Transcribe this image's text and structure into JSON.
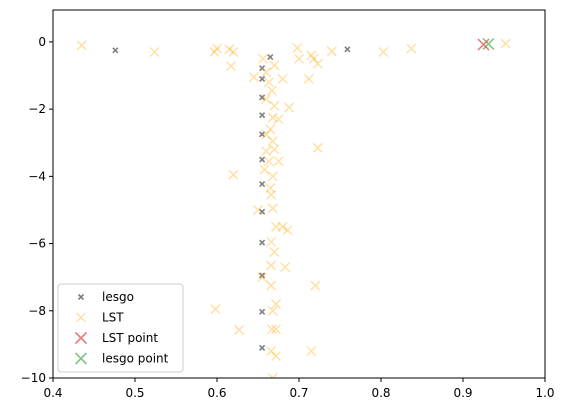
{
  "chart_data": {
    "type": "scatter",
    "xlim": [
      0.4,
      1.0
    ],
    "ylim": [
      -10,
      0.95
    ],
    "x_ticks": [
      0.4,
      0.5,
      0.6,
      0.7,
      0.8,
      0.9,
      1.0
    ],
    "x_tick_labels": [
      "0.4",
      "0.5",
      "0.6",
      "0.7",
      "0.8",
      "0.9",
      "1.0"
    ],
    "y_ticks": [
      0,
      -2,
      -4,
      -6,
      -8,
      -10
    ],
    "y_tick_labels": [
      "0",
      "−2",
      "−4",
      "−6",
      "−8",
      "−10"
    ],
    "grid": false,
    "legend_position": "lower-left",
    "series": [
      {
        "name": "lesgo",
        "marker": "x-small",
        "color": "#000000",
        "points": [
          [
            0.476,
            -0.25
          ],
          [
            0.759,
            -0.22
          ],
          [
            0.665,
            -0.45
          ],
          [
            0.655,
            -0.78
          ],
          [
            0.655,
            -1.1
          ],
          [
            0.655,
            -1.65
          ],
          [
            0.655,
            -2.18
          ],
          [
            0.655,
            -2.75
          ],
          [
            0.655,
            -3.5
          ],
          [
            0.655,
            -4.23
          ],
          [
            0.655,
            -5.05
          ],
          [
            0.655,
            -5.97
          ],
          [
            0.655,
            -6.95
          ],
          [
            0.655,
            -8.03
          ],
          [
            0.655,
            -9.1
          ]
        ]
      },
      {
        "name": "LST",
        "marker": "x",
        "color": "#ffa500",
        "points": [
          [
            0.435,
            -0.1
          ],
          [
            0.524,
            -0.3
          ],
          [
            0.597,
            -0.3
          ],
          [
            0.6,
            -0.2
          ],
          [
            0.615,
            -0.22
          ],
          [
            0.62,
            -0.3
          ],
          [
            0.617,
            -0.72
          ],
          [
            0.645,
            -1.05
          ],
          [
            0.656,
            -0.5
          ],
          [
            0.66,
            -0.9
          ],
          [
            0.663,
            -1.2
          ],
          [
            0.667,
            -1.45
          ],
          [
            0.67,
            -0.7
          ],
          [
            0.66,
            -1.7
          ],
          [
            0.67,
            -1.9
          ],
          [
            0.668,
            -2.25
          ],
          [
            0.665,
            -2.6
          ],
          [
            0.66,
            -2.75
          ],
          [
            0.668,
            -2.95
          ],
          [
            0.67,
            -3.2
          ],
          [
            0.663,
            -3.55
          ],
          [
            0.675,
            -3.55
          ],
          [
            0.658,
            -3.8
          ],
          [
            0.668,
            -4.0
          ],
          [
            0.62,
            -3.95
          ],
          [
            0.665,
            -4.35
          ],
          [
            0.666,
            -4.55
          ],
          [
            0.65,
            -5.0
          ],
          [
            0.668,
            -4.95
          ],
          [
            0.672,
            -5.5
          ],
          [
            0.68,
            -5.5
          ],
          [
            0.686,
            -5.6
          ],
          [
            0.666,
            -5.95
          ],
          [
            0.67,
            -6.25
          ],
          [
            0.666,
            -6.65
          ],
          [
            0.683,
            -6.7
          ],
          [
            0.655,
            -7.0
          ],
          [
            0.666,
            -7.25
          ],
          [
            0.672,
            -7.8
          ],
          [
            0.668,
            -8.0
          ],
          [
            0.598,
            -7.95
          ],
          [
            0.627,
            -8.57
          ],
          [
            0.667,
            -8.55
          ],
          [
            0.672,
            -8.55
          ],
          [
            0.666,
            -9.2
          ],
          [
            0.672,
            -9.35
          ],
          [
            0.668,
            -10.0
          ],
          [
            0.715,
            -9.2
          ],
          [
            0.72,
            -7.25
          ],
          [
            0.723,
            -3.15
          ],
          [
            0.688,
            -1.95
          ],
          [
            0.698,
            -0.18
          ],
          [
            0.7,
            -0.5
          ],
          [
            0.715,
            -0.4
          ],
          [
            0.718,
            -0.5
          ],
          [
            0.723,
            -0.65
          ],
          [
            0.74,
            -0.28
          ],
          [
            0.712,
            -1.1
          ],
          [
            0.803,
            -0.3
          ],
          [
            0.837,
            -0.2
          ],
          [
            0.952,
            -0.05
          ],
          [
            0.675,
            -2.3
          ],
          [
            0.68,
            -1.1
          ],
          [
            0.66,
            -3.25
          ]
        ]
      },
      {
        "name": "LST point",
        "marker": "x-large",
        "color": "#d62728",
        "points": [
          [
            0.925,
            -0.08
          ]
        ]
      },
      {
        "name": "lesgo point",
        "marker": "x-large",
        "color": "#2ca02c",
        "points": [
          [
            0.931,
            -0.06
          ]
        ]
      }
    ]
  }
}
